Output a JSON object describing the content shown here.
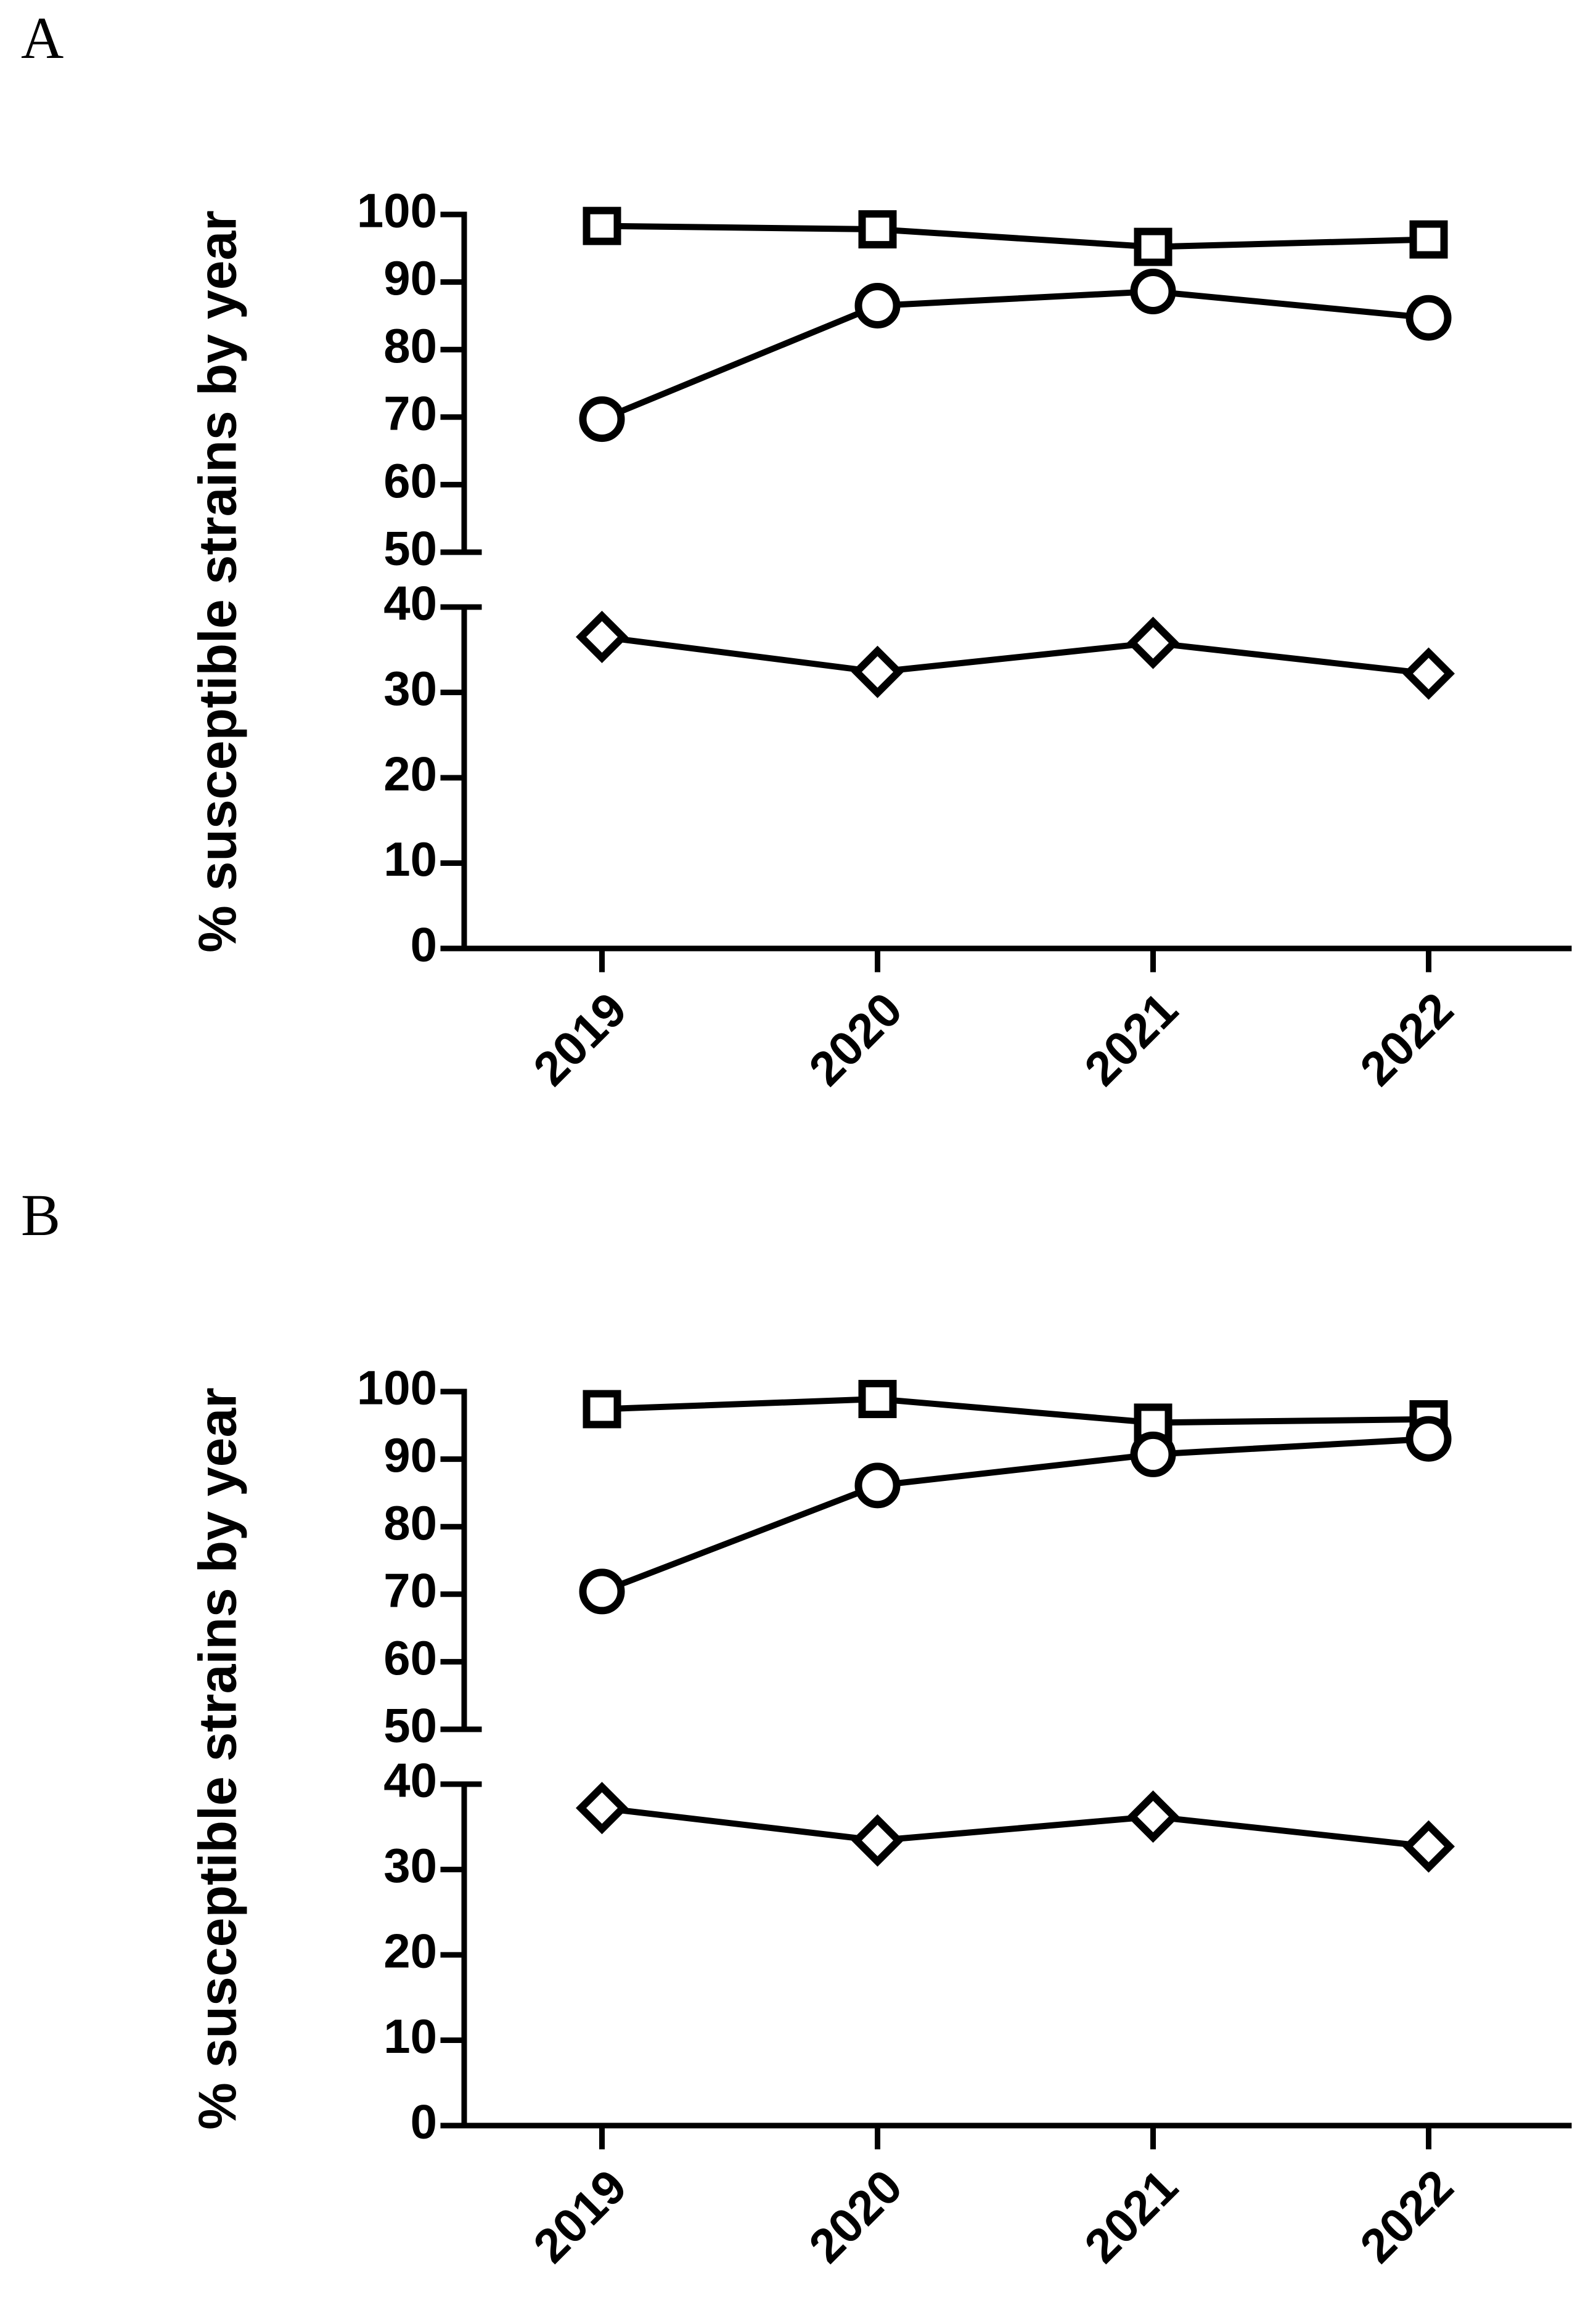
{
  "chart_data": [
    {
      "type": "line",
      "panel": "A",
      "y_label": "% susceptible strains by year",
      "categories": [
        "2019",
        "2020",
        "2021",
        "2022"
      ],
      "series": [
        {
          "marker": "square",
          "color": "#000000",
          "values": [
            98.3,
            97.8,
            95.2,
            96.3
          ]
        },
        {
          "marker": "circle",
          "color": "#000000",
          "values": [
            69.7,
            86.5,
            88.6,
            84.7
          ]
        },
        {
          "marker": "diamond",
          "color": "#000000",
          "values": [
            36.5,
            32.4,
            35.8,
            32.2
          ]
        }
      ],
      "ylim": [
        0,
        100
      ],
      "yticks": [
        0,
        10,
        20,
        30,
        40,
        50,
        60,
        70,
        80,
        90,
        100
      ],
      "y_break": [
        40,
        50
      ]
    },
    {
      "type": "line",
      "panel": "B",
      "y_label": "% susceptible strains by year",
      "categories": [
        "2019",
        "2020",
        "2021",
        "2022"
      ],
      "series": [
        {
          "marker": "square",
          "color": "#000000",
          "values": [
            97.4,
            98.9,
            95.4,
            95.9
          ]
        },
        {
          "marker": "circle",
          "color": "#000000",
          "values": [
            70.4,
            86.1,
            90.7,
            93.0
          ]
        },
        {
          "marker": "diamond",
          "color": "#000000",
          "values": [
            37.2,
            33.4,
            36.2,
            32.7
          ]
        }
      ],
      "ylim": [
        0,
        100
      ],
      "yticks": [
        0,
        10,
        20,
        30,
        40,
        50,
        60,
        70,
        80,
        90,
        100
      ],
      "y_break": [
        40,
        50
      ]
    }
  ]
}
